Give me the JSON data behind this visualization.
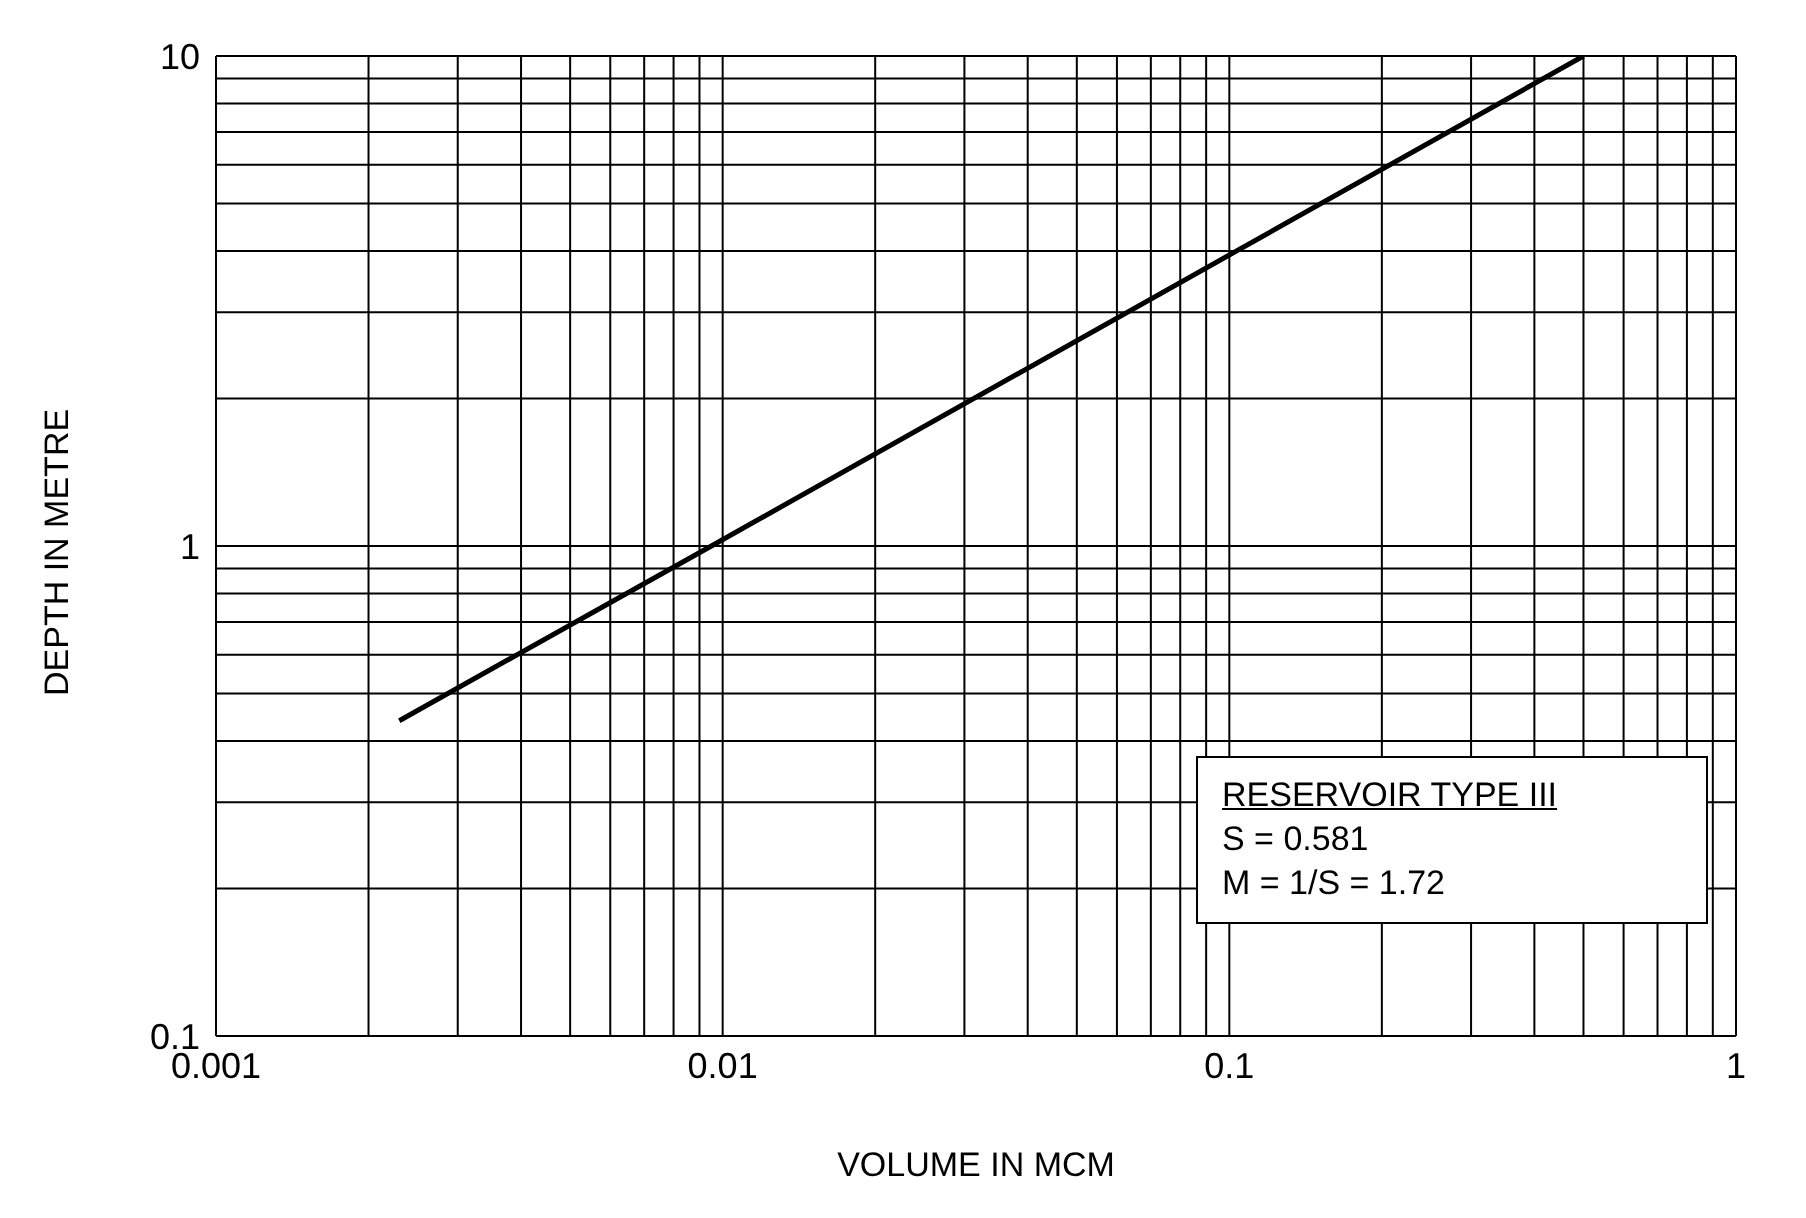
{
  "chart_data": {
    "type": "line",
    "xlabel": "VOLUME IN MCM",
    "ylabel": "DEPTH IN METRE",
    "x": [
      0.0023,
      0.0095,
      0.5
    ],
    "series": [
      {
        "color": "#000000",
        "values": [
          0.44,
          1,
          10
        ]
      }
    ],
    "log": "xy",
    "xlim": [
      0.001,
      1
    ],
    "xticks": [
      0.001,
      0.01,
      0.1,
      1
    ],
    "ylim": [
      0.1,
      10
    ],
    "yticks": [
      0.1,
      1,
      10
    ],
    "grid": true,
    "marker": "none",
    "line_style": "solid",
    "annotations": [
      "RESERVOIR TYPE III",
      "S = 0.581",
      "M = 1/S = 1.72"
    ]
  }
}
